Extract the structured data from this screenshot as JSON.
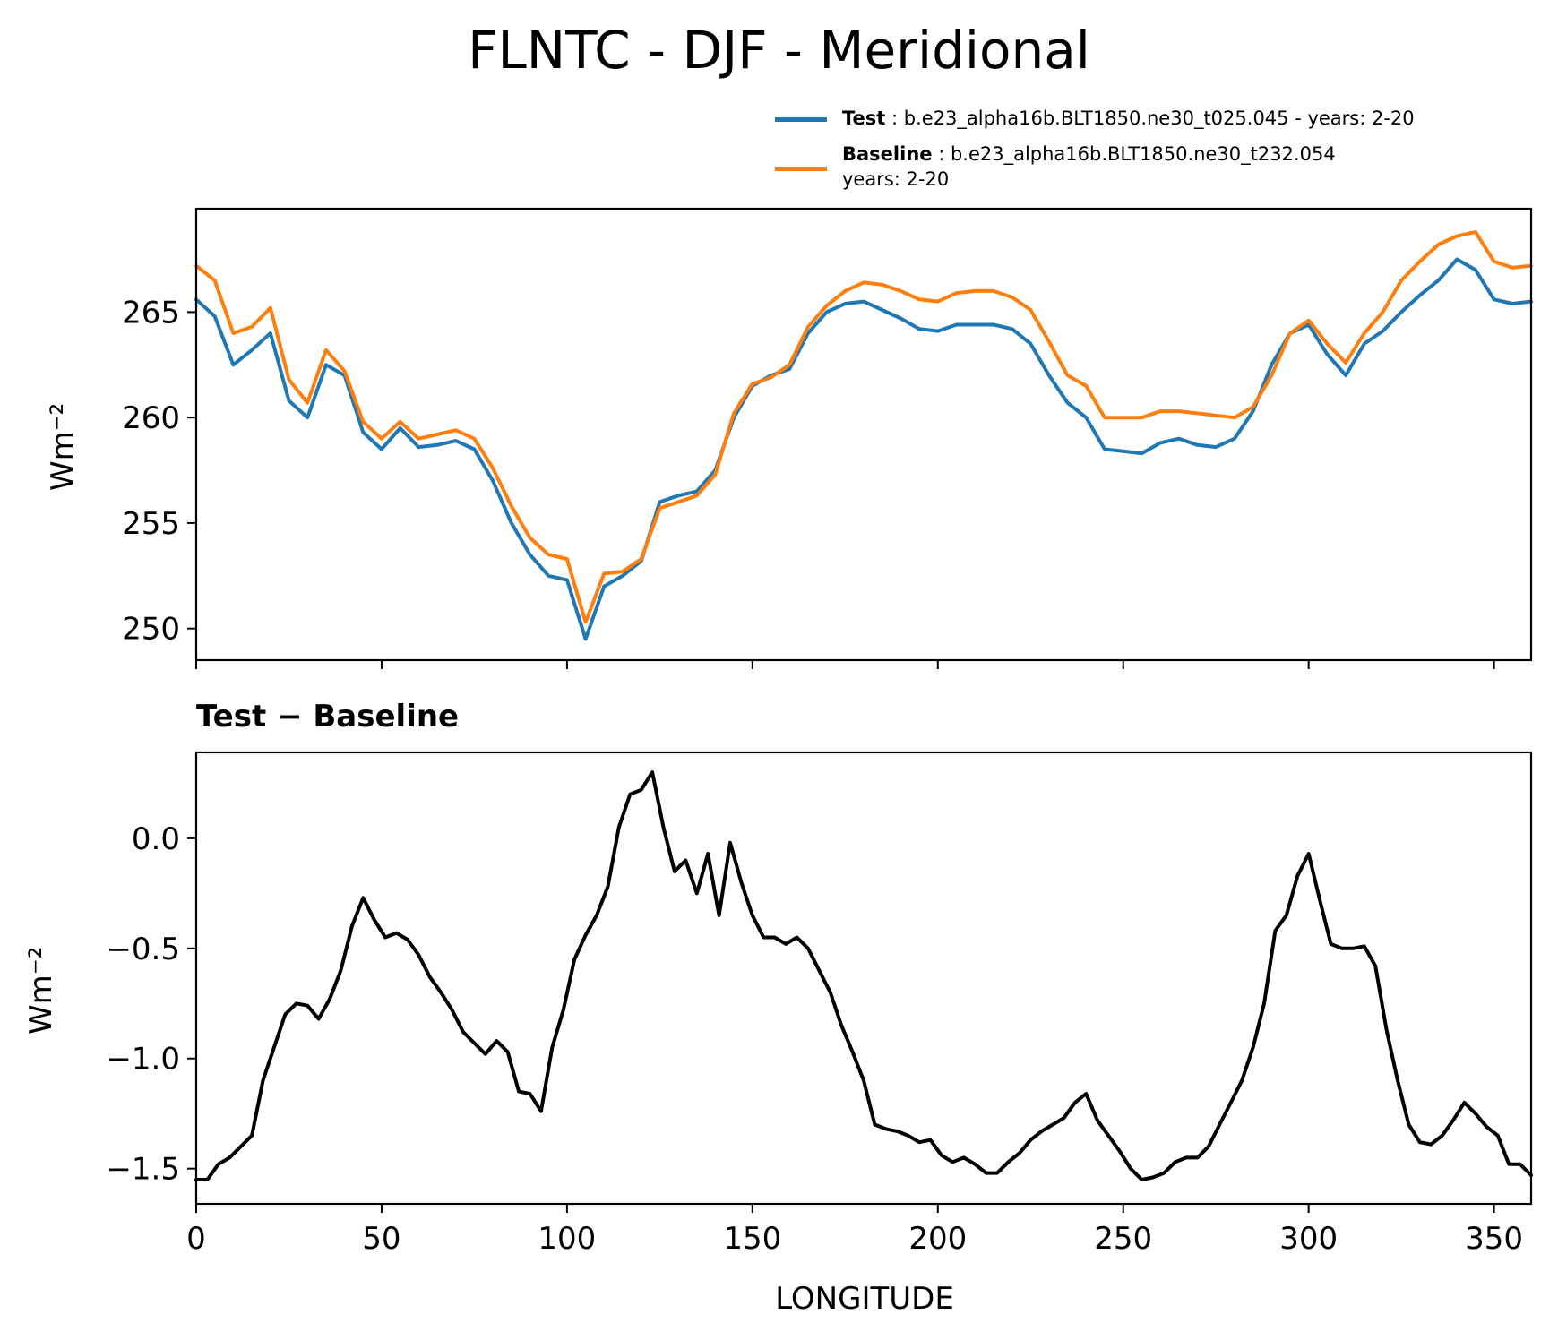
{
  "title": "FLNTC - DJF - Meridional",
  "legend": {
    "test": {
      "bold": "Test",
      "text": " : b.e23_alpha16b.BLT1850.ne30_t025.045 - years: 2-20"
    },
    "baseline": {
      "bold": "Baseline",
      "text": " : b.e23_alpha16b.BLT1850.ne30_t232.054",
      "text2": "years: 2-20"
    }
  },
  "colors": {
    "test": "#1f77b4",
    "baseline": "#ff7f0e",
    "diff": "#000000"
  },
  "chart_data": [
    {
      "type": "line",
      "title": "",
      "ylabel": "Wm⁻²",
      "xlim": [
        0,
        360
      ],
      "ylim": [
        248.5,
        269.9
      ],
      "yticks": [
        250,
        255,
        260,
        265
      ],
      "xticks": [
        0,
        50,
        100,
        150,
        200,
        250,
        300,
        350
      ],
      "show_xticklabels": false,
      "grid": false,
      "legend_placement": "top-right, above plot",
      "x": [
        0,
        5,
        10,
        15,
        20,
        25,
        30,
        35,
        40,
        45,
        50,
        55,
        60,
        65,
        70,
        75,
        80,
        85,
        90,
        95,
        100,
        105,
        110,
        115,
        120,
        125,
        130,
        135,
        140,
        145,
        150,
        155,
        160,
        165,
        170,
        175,
        180,
        185,
        190,
        195,
        200,
        205,
        210,
        215,
        220,
        225,
        230,
        235,
        240,
        245,
        250,
        255,
        260,
        265,
        270,
        275,
        280,
        285,
        290,
        295,
        300,
        305,
        310,
        315,
        320,
        325,
        330,
        335,
        340,
        345,
        350,
        355,
        360
      ],
      "series": [
        {
          "name": "Test",
          "values": [
            265.6,
            264.8,
            262.5,
            263.2,
            264.0,
            260.8,
            260.0,
            262.5,
            262.0,
            259.3,
            258.5,
            259.5,
            258.6,
            258.7,
            258.9,
            258.5,
            257.0,
            255.0,
            253.5,
            252.5,
            252.3,
            249.5,
            252.0,
            252.5,
            253.2,
            256.0,
            256.3,
            256.5,
            257.5,
            260.0,
            261.5,
            262.0,
            262.3,
            264.0,
            265.0,
            265.4,
            265.5,
            265.1,
            264.7,
            264.2,
            264.1,
            264.4,
            264.4,
            264.4,
            264.2,
            263.5,
            262.0,
            260.7,
            260.0,
            258.5,
            258.4,
            258.3,
            258.8,
            259.0,
            258.7,
            258.6,
            259.0,
            260.3,
            262.5,
            264.0,
            264.4,
            263.0,
            262.0,
            263.5,
            264.1,
            265.0,
            265.8,
            266.5,
            267.5,
            267.0,
            265.6,
            265.4,
            265.5
          ]
        },
        {
          "name": "Baseline",
          "values": [
            267.2,
            266.5,
            264.0,
            264.3,
            265.2,
            261.8,
            260.7,
            263.2,
            262.2,
            259.8,
            259.0,
            259.8,
            259.0,
            259.2,
            259.4,
            259.0,
            257.6,
            255.8,
            254.3,
            253.5,
            253.3,
            250.3,
            252.6,
            252.7,
            253.3,
            255.7,
            256.0,
            256.3,
            257.3,
            260.2,
            261.6,
            261.9,
            262.5,
            264.3,
            265.3,
            266.0,
            266.4,
            266.3,
            266.0,
            265.6,
            265.5,
            265.9,
            266.0,
            266.0,
            265.7,
            265.1,
            263.6,
            262.0,
            261.5,
            260.0,
            260.0,
            260.0,
            260.3,
            260.3,
            260.2,
            260.1,
            260.0,
            260.5,
            262.0,
            264.0,
            264.6,
            263.5,
            262.6,
            264.0,
            265.0,
            266.5,
            267.4,
            268.2,
            268.6,
            268.8,
            267.4,
            267.1,
            267.2
          ]
        }
      ]
    },
    {
      "type": "line",
      "title": "Test − Baseline",
      "ylabel": "Wm⁻²",
      "xlabel": "LONGITUDE",
      "xlim": [
        0,
        360
      ],
      "ylim": [
        -1.66,
        0.39
      ],
      "yticks": [
        -1.5,
        -1.0,
        -0.5,
        0.0
      ],
      "ytick_labels": [
        "−1.5",
        "−1.0",
        "−0.5",
        "0.0"
      ],
      "xticks": [
        0,
        50,
        100,
        150,
        200,
        250,
        300,
        350
      ],
      "xtick_labels": [
        "0",
        "50",
        "100",
        "150",
        "200",
        "250",
        "300",
        "350"
      ],
      "grid": false,
      "x": [
        0,
        3,
        6,
        9,
        12,
        15,
        18,
        21,
        24,
        27,
        30,
        33,
        36,
        39,
        42,
        45,
        48,
        51,
        54,
        57,
        60,
        63,
        66,
        69,
        72,
        75,
        78,
        81,
        84,
        87,
        90,
        93,
        96,
        99,
        102,
        105,
        108,
        111,
        114,
        117,
        120,
        123,
        126,
        129,
        132,
        135,
        138,
        141,
        144,
        147,
        150,
        153,
        156,
        159,
        162,
        165,
        168,
        171,
        174,
        177,
        180,
        183,
        186,
        189,
        192,
        195,
        198,
        201,
        204,
        207,
        210,
        213,
        216,
        219,
        222,
        225,
        228,
        231,
        234,
        237,
        240,
        243,
        246,
        249,
        252,
        255,
        258,
        261,
        264,
        267,
        270,
        273,
        276,
        279,
        282,
        285,
        288,
        291,
        294,
        297,
        300,
        303,
        306,
        309,
        312,
        315,
        318,
        321,
        324,
        327,
        330,
        333,
        336,
        339,
        342,
        345,
        348,
        351,
        354,
        357,
        360
      ],
      "series": [
        {
          "name": "Test − Baseline",
          "values": [
            -1.55,
            -1.55,
            -1.48,
            -1.45,
            -1.4,
            -1.35,
            -1.1,
            -0.95,
            -0.8,
            -0.75,
            -0.76,
            -0.82,
            -0.73,
            -0.6,
            -0.4,
            -0.27,
            -0.37,
            -0.45,
            -0.43,
            -0.46,
            -0.53,
            -0.63,
            -0.7,
            -0.78,
            -0.88,
            -0.93,
            -0.98,
            -0.92,
            -0.97,
            -1.15,
            -1.16,
            -1.24,
            -0.95,
            -0.78,
            -0.55,
            -0.44,
            -0.35,
            -0.22,
            0.05,
            0.2,
            0.22,
            0.3,
            0.05,
            -0.15,
            -0.1,
            -0.25,
            -0.07,
            -0.35,
            -0.02,
            -0.2,
            -0.35,
            -0.45,
            -0.45,
            -0.48,
            -0.45,
            -0.5,
            -0.6,
            -0.7,
            -0.85,
            -0.97,
            -1.1,
            -1.3,
            -1.32,
            -1.33,
            -1.35,
            -1.38,
            -1.37,
            -1.44,
            -1.47,
            -1.45,
            -1.48,
            -1.52,
            -1.52,
            -1.47,
            -1.43,
            -1.37,
            -1.33,
            -1.3,
            -1.27,
            -1.2,
            -1.16,
            -1.28,
            -1.35,
            -1.42,
            -1.5,
            -1.55,
            -1.54,
            -1.52,
            -1.47,
            -1.45,
            -1.45,
            -1.4,
            -1.3,
            -1.2,
            -1.1,
            -0.95,
            -0.75,
            -0.42,
            -0.35,
            -0.17,
            -0.07,
            -0.28,
            -0.48,
            -0.5,
            -0.5,
            -0.49,
            -0.58,
            -0.87,
            -1.1,
            -1.3,
            -1.38,
            -1.39,
            -1.35,
            -1.28,
            -1.2,
            -1.25,
            -1.31,
            -1.35,
            -1.48,
            -1.48,
            -1.53
          ]
        }
      ]
    }
  ]
}
